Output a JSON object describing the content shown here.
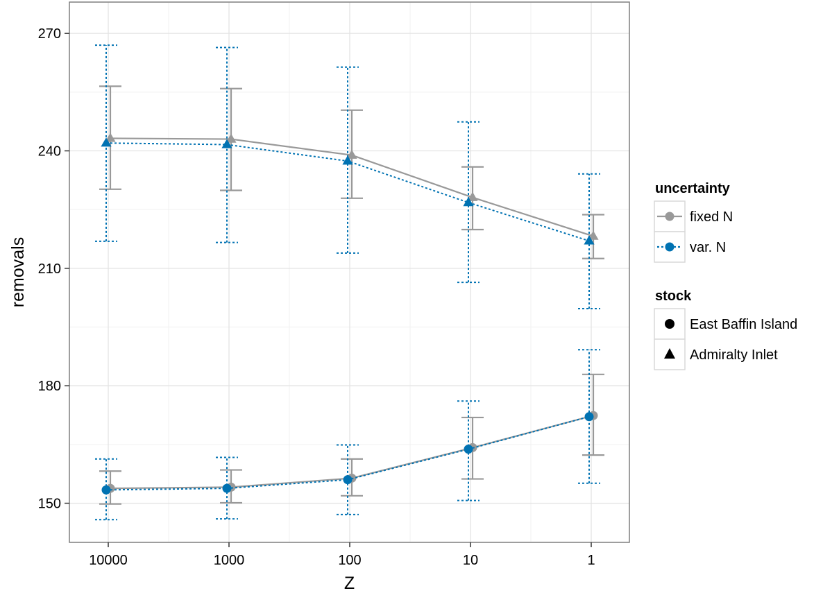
{
  "chart_data": {
    "type": "line",
    "xlabel": "Z",
    "ylabel": "removals",
    "x_categories": [
      "10000",
      "1000",
      "100",
      "10",
      "1"
    ],
    "ylim": [
      140,
      278
    ],
    "yticks": [
      150,
      180,
      210,
      240,
      270
    ],
    "grid": true,
    "legend_position": "right",
    "legends": [
      {
        "title": "uncertainty",
        "entries": [
          "fixed N",
          "var. N"
        ]
      },
      {
        "title": "stock",
        "entries": [
          "East Baffin Island",
          "Admiralty Inlet"
        ]
      }
    ],
    "colors": {
      "fixed N": "#999999",
      "var. N": "#0072B2"
    },
    "series": [
      {
        "uncertainty": "fixed N",
        "stock": "Admiralty Inlet",
        "values": [
          243.2,
          243.0,
          238.9,
          228.1,
          218.2
        ],
        "lower": [
          230.2,
          229.9,
          227.9,
          219.9,
          212.5
        ],
        "upper": [
          256.5,
          255.9,
          250.4,
          235.9,
          223.7
        ]
      },
      {
        "uncertainty": "var. N",
        "stock": "Admiralty Inlet",
        "values": [
          242.0,
          241.6,
          237.4,
          226.8,
          217.0
        ],
        "lower": [
          216.9,
          216.6,
          213.9,
          206.4,
          199.7
        ],
        "upper": [
          267.0,
          266.4,
          261.4,
          247.4,
          234.1
        ]
      },
      {
        "uncertainty": "fixed N",
        "stock": "East Baffin Island",
        "values": [
          153.8,
          154.1,
          156.4,
          164.2,
          172.4
        ],
        "lower": [
          149.8,
          150.1,
          151.9,
          156.2,
          162.3
        ],
        "upper": [
          158.2,
          158.5,
          161.3,
          171.9,
          182.9
        ]
      },
      {
        "uncertainty": "var. N",
        "stock": "East Baffin Island",
        "values": [
          153.4,
          153.8,
          156.0,
          163.8,
          172.1
        ],
        "lower": [
          145.8,
          146.0,
          147.1,
          150.7,
          155.1
        ],
        "upper": [
          161.3,
          161.7,
          164.9,
          176.1,
          189.2
        ]
      }
    ]
  }
}
